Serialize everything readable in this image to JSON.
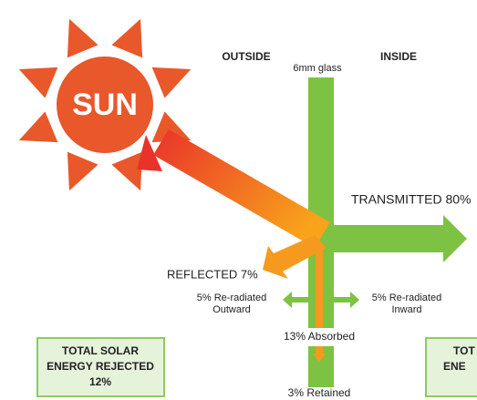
{
  "sun": "SUN",
  "outside": "OUTSIDE",
  "glass": "6mm glass",
  "inside": "INSIDE",
  "transmitted": "TRANSMITTED 80%",
  "reflected": "REFLECTED 7%",
  "reradiated_outward": [
    "5% Re-radiated",
    "Outward"
  ],
  "reradiated_inward": [
    "5% Re-radiated",
    "Inward"
  ],
  "absorbed": "13% Absorbed",
  "retained": "3% Retained",
  "rejected_box": [
    "TOTAL SOLAR",
    "ENERGY REJECTED",
    "12%"
  ],
  "transmitted_box": [
    "TOT",
    "ENE"
  ]
}
